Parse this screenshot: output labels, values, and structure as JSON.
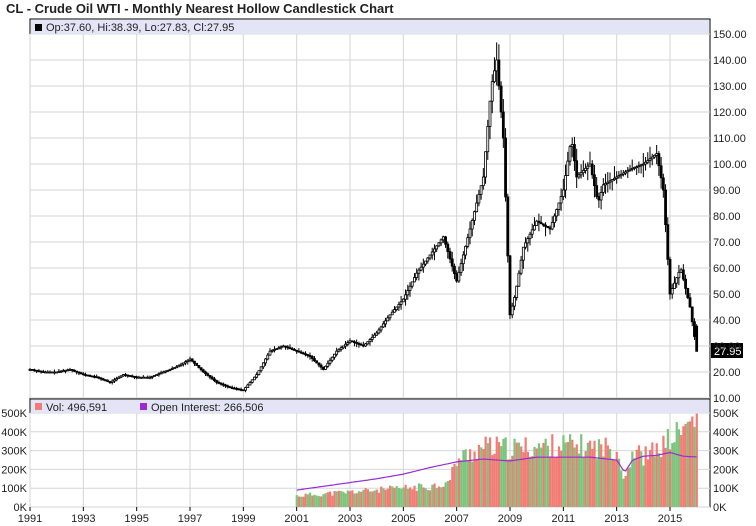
{
  "title": "CL - Crude Oil WTI - Monthly Nearest Hollow Candlestick Chart",
  "price_panel": {
    "ohlc_legend": "Op:37.60, Hi:38.39, Lo:27.83, Cl:27.95",
    "last_price_label": "27.95"
  },
  "volume_panel": {
    "vol_legend": "Vol: 496,591",
    "oi_legend": "Open Interest: 266,506"
  },
  "colors": {
    "legend_band": "#e4e4f7",
    "grid": "#d6d6d6",
    "candle": "#000000",
    "volume_up": "#7cc47c",
    "volume_down": "#f27b74",
    "open_interest": "#9a2bd6"
  },
  "chart_data": [
    {
      "type": "candlestick",
      "title": "CL - Crude Oil WTI - Monthly Nearest Hollow Candlestick Chart",
      "x_ticks": [
        "1991",
        "1993",
        "1995",
        "1997",
        "1999",
        "2001",
        "2003",
        "2005",
        "2007",
        "2009",
        "2011",
        "2013",
        "2015"
      ],
      "y_ticks": [
        "10.00",
        "20.00",
        "30.00",
        "40.00",
        "50.00",
        "60.00",
        "70.00",
        "80.00",
        "90.00",
        "100.00",
        "110.00",
        "120.00",
        "130.00",
        "140.00",
        "150.00"
      ],
      "ylim": [
        10,
        150
      ],
      "xlim": [
        1991.0,
        2016.5
      ],
      "last_bar": {
        "open": 37.6,
        "high": 38.39,
        "low": 27.83,
        "close": 27.95
      },
      "series": [
        {
          "x": [
            1991.0,
            1991.5,
            1992.0,
            1992.5,
            1993.0,
            1993.5,
            1994.0,
            1994.5,
            1995.0,
            1995.5,
            1996.0,
            1996.5,
            1997.0,
            1997.5,
            1998.0,
            1998.5,
            1999.0,
            1999.5,
            2000.0,
            2000.5,
            2001.0,
            2001.5,
            2002.0,
            2002.5,
            2003.0,
            2003.5,
            2004.0,
            2004.5,
            2005.0,
            2005.5,
            2006.0,
            2006.5,
            2007.0,
            2007.5,
            2008.0,
            2008.3,
            2008.5,
            2008.75,
            2009.0,
            2009.2,
            2009.5,
            2010.0,
            2010.5,
            2011.0,
            2011.3,
            2011.5,
            2012.0,
            2012.3,
            2012.5,
            2013.0,
            2013.5,
            2014.0,
            2014.5,
            2014.75,
            2015.0,
            2015.4,
            2015.75,
            2016.0
          ],
          "close": [
            21,
            20,
            20,
            21,
            19,
            18,
            16,
            19,
            18,
            18,
            20,
            22,
            25,
            20,
            16,
            14,
            13,
            19,
            28,
            30,
            28,
            26,
            21,
            28,
            32,
            30,
            35,
            42,
            48,
            58,
            65,
            72,
            55,
            75,
            95,
            130,
            140,
            110,
            42,
            50,
            68,
            78,
            75,
            90,
            110,
            95,
            100,
            85,
            92,
            95,
            98,
            100,
            104,
            90,
            50,
            60,
            45,
            28
          ]
        }
      ]
    },
    {
      "type": "bar",
      "title": "",
      "y_ticks": [
        "0K",
        "100K",
        "200K",
        "300K",
        "400K",
        "500K"
      ],
      "ylim": [
        0,
        500000
      ],
      "xlim": [
        1991.0,
        2016.5
      ],
      "series": [
        {
          "name": "Vol",
          "last": 496591,
          "x": [
            2001.0,
            2002.0,
            2003.0,
            2004.0,
            2005.0,
            2006.0,
            2006.7,
            2007.0,
            2008.0,
            2009.0,
            2010.0,
            2011.0,
            2012.0,
            2013.0,
            2013.3,
            2013.6,
            2014.0,
            2014.5,
            2015.0,
            2015.5,
            2016.0
          ],
          "values": [
            60000,
            70000,
            80000,
            90000,
            100000,
            110000,
            130000,
            250000,
            320000,
            310000,
            320000,
            330000,
            320000,
            310000,
            150000,
            300000,
            270000,
            300000,
            360000,
            410000,
            496591
          ]
        },
        {
          "name": "Open Interest",
          "last": 266506,
          "x": [
            2001.0,
            2002.0,
            2003.0,
            2004.0,
            2005.0,
            2006.0,
            2007.0,
            2008.0,
            2009.0,
            2010.0,
            2011.0,
            2012.0,
            2013.0,
            2013.3,
            2013.6,
            2014.0,
            2014.5,
            2015.0,
            2015.5,
            2016.0
          ],
          "values": [
            90000,
            110000,
            130000,
            150000,
            175000,
            210000,
            240000,
            255000,
            245000,
            265000,
            265000,
            265000,
            250000,
            185000,
            250000,
            270000,
            275000,
            290000,
            270000,
            266506
          ]
        }
      ]
    }
  ]
}
